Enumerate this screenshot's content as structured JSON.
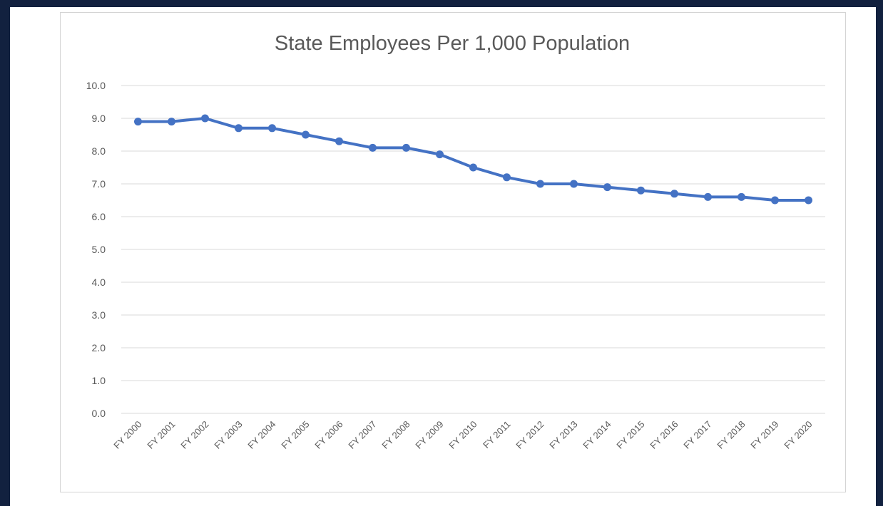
{
  "chart_data": {
    "type": "line",
    "title": "State Employees Per 1,000 Population",
    "xlabel": "",
    "ylabel": "",
    "ylim": [
      0,
      10
    ],
    "y_ticks": [
      "0.0",
      "1.0",
      "2.0",
      "3.0",
      "4.0",
      "5.0",
      "6.0",
      "7.0",
      "8.0",
      "9.0",
      "10.0"
    ],
    "grid": "horizontal",
    "legend": "none",
    "categories": [
      "FY 2000",
      "FY 2001",
      "FY 2002",
      "FY 2003",
      "FY 2004",
      "FY 2005",
      "FY 2006",
      "FY 2007",
      "FY 2008",
      "FY 2009",
      "FY 2010",
      "FY 2011",
      "FY 2012",
      "FY 2013",
      "FY 2014",
      "FY 2015",
      "FY 2016",
      "FY 2017",
      "FY 2018",
      "FY 2019",
      "FY 2020"
    ],
    "series": [
      {
        "values": [
          8.9,
          8.9,
          9.0,
          8.7,
          8.7,
          8.5,
          8.3,
          8.1,
          8.1,
          7.9,
          7.5,
          7.2,
          7.0,
          7.0,
          6.9,
          6.8,
          6.7,
          6.6,
          6.6,
          6.5,
          6.5
        ],
        "color": "#4472c4"
      }
    ]
  }
}
